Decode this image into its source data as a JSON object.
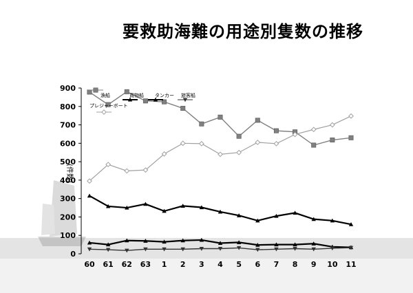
{
  "title": "要救助海難の用途別隻数の推移",
  "chart_data": {
    "type": "line",
    "ylabel": "(件数)",
    "ylim": [
      0,
      900
    ],
    "yticks": [
      0,
      100,
      200,
      300,
      400,
      500,
      600,
      700,
      800,
      900
    ],
    "categories": [
      "60",
      "61",
      "62",
      "63",
      "1",
      "2",
      "3",
      "4",
      "5",
      "6",
      "7",
      "8",
      "9",
      "10",
      "11"
    ],
    "legend_position": "top-left",
    "series": [
      {
        "name": "漁船",
        "color": "#808080",
        "marker": "square",
        "values": [
          878,
          810,
          880,
          830,
          825,
          790,
          705,
          742,
          638,
          725,
          668,
          662,
          590,
          618,
          630
        ]
      },
      {
        "name": "プレジャーボート",
        "color": "#a0a0a0",
        "marker": "diamond",
        "values": [
          395,
          485,
          450,
          455,
          542,
          600,
          598,
          540,
          550,
          605,
          598,
          648,
          675,
          700,
          748
        ]
      },
      {
        "name": "貨物船",
        "color": "#000000",
        "marker": "triangle-up",
        "values": [
          315,
          258,
          250,
          270,
          232,
          260,
          252,
          228,
          208,
          180,
          205,
          222,
          188,
          180,
          160
        ]
      },
      {
        "name": "タンカー",
        "color": "#000000",
        "marker": "triangle-up",
        "values": [
          60,
          50,
          72,
          70,
          65,
          72,
          75,
          58,
          62,
          48,
          50,
          50,
          55,
          38,
          35
        ]
      },
      {
        "name": "旅客船",
        "color": "#333333",
        "marker": "triangle-down",
        "values": [
          25,
          22,
          18,
          25,
          25,
          25,
          28,
          28,
          32,
          22,
          25,
          28,
          25,
          30,
          33
        ]
      }
    ]
  }
}
